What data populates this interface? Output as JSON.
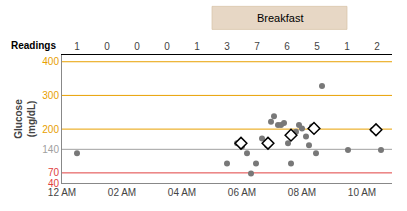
{
  "chart_data": {
    "type": "scatter",
    "title": "Breakfast",
    "title_span": [
      300,
      570
    ],
    "title_color": "#D4B896",
    "ylabel": [
      "Glucose",
      "(mg/dL)"
    ],
    "xlim": [
      0,
      660
    ],
    "xticks": [
      {
        "value": 0,
        "label": "12 AM"
      },
      {
        "value": 120,
        "label": "02 AM"
      },
      {
        "value": 240,
        "label": "04 AM"
      },
      {
        "value": 360,
        "label": "06 AM"
      },
      {
        "value": 480,
        "label": "08 AM"
      },
      {
        "value": 600,
        "label": "10 AM"
      }
    ],
    "ylim": [
      40,
      420
    ],
    "yticks": [
      40,
      70,
      140,
      200,
      300,
      400
    ],
    "ytick_colors": [
      "#E04040",
      "#E04040",
      "#A0A0A0",
      "#E8A000",
      "#E8A000",
      "#E8A000"
    ],
    "grid": false,
    "readings": {
      "label": "Readings",
      "x": [
        30,
        90,
        150,
        210,
        270,
        330,
        390,
        450,
        510,
        570,
        630
      ],
      "values": [
        1,
        0,
        0,
        0,
        1,
        3,
        7,
        6,
        5,
        1,
        2
      ]
    },
    "reference_lines": [
      {
        "y": 400,
        "color": "#E8A000"
      },
      {
        "y": 300,
        "color": "#E8A000"
      },
      {
        "y": 200,
        "color": "#E8A000"
      },
      {
        "y": 140,
        "color": "#A0A0A0"
      },
      {
        "y": 70,
        "color": "#E04040"
      }
    ],
    "series": [
      {
        "type": "scatter",
        "marker": "circle",
        "color": "#787878",
        "x": [
          30,
          330,
          350,
          360,
          370,
          378,
          388,
          400,
          410,
          418,
          424,
          432,
          438,
          444,
          452,
          458,
          468,
          474,
          480,
          488,
          494,
          500,
          508,
          520,
          572,
          622,
          638
        ],
        "values": [
          128,
          98,
          158,
          148,
          128,
          68,
          98,
          172,
          152,
          222,
          238,
          212,
          212,
          218,
          158,
          98,
          192,
          212,
          202,
          178,
          152,
          208,
          128,
          328,
          138,
          198,
          138
        ]
      },
      {
        "type": "scatter",
        "marker": "diamond",
        "color": "white",
        "x": [
          358,
          412,
          458,
          504,
          628
        ],
        "values": [
          158,
          158,
          182,
          202,
          198
        ]
      }
    ]
  }
}
